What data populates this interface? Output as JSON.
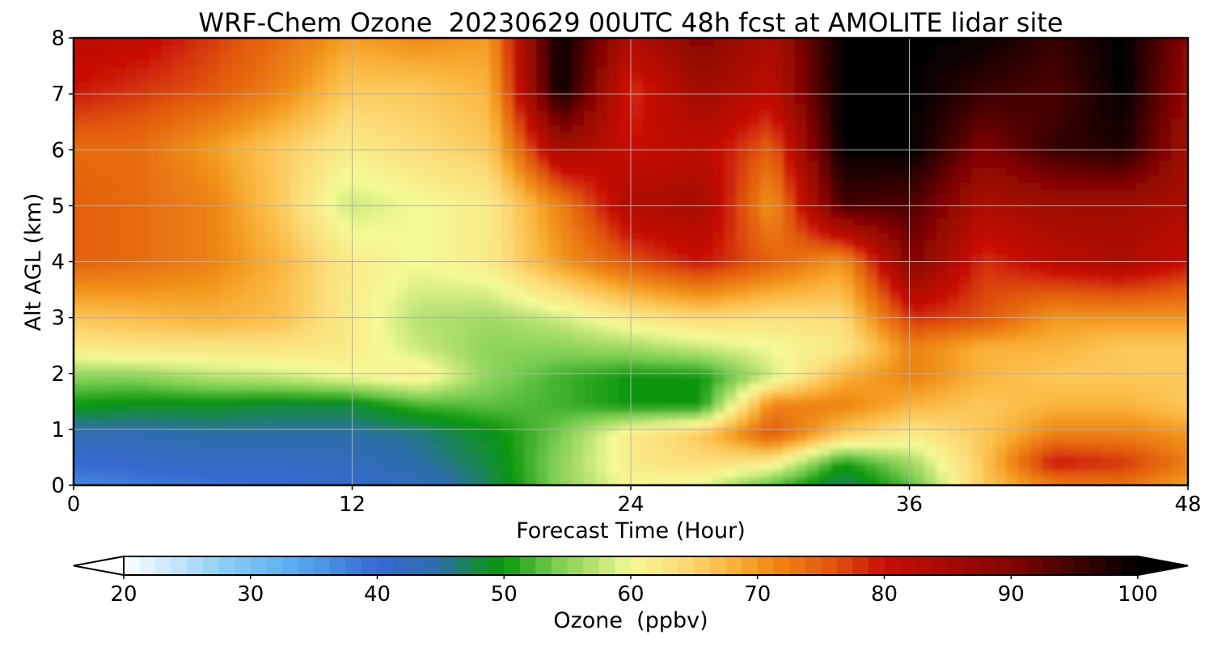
{
  "chart_data": {
    "type": "heatmap",
    "title": "WRF-Chem Ozone  20230629 00UTC 48h fcst at AMOLITE lidar site",
    "xlabel": "Forecast Time (Hour)",
    "ylabel": "Alt AGL (km)",
    "x_ticks": [
      "0",
      "12",
      "24",
      "36",
      "48"
    ],
    "y_ticks": [
      "0",
      "1",
      "2",
      "3",
      "4",
      "5",
      "6",
      "7",
      "8"
    ],
    "xlim": [
      0,
      48
    ],
    "ylim": [
      0,
      8
    ],
    "grid": true,
    "x": [
      0,
      3,
      6,
      9,
      12,
      15,
      18,
      21,
      24,
      27,
      30,
      33,
      36,
      39,
      42,
      45,
      48
    ],
    "y": [
      0,
      0.5,
      1,
      1.5,
      2,
      2.5,
      3,
      4,
      5,
      6,
      7,
      8
    ],
    "z": [
      [
        36,
        37,
        38,
        39,
        40,
        42,
        47,
        55,
        60,
        58,
        50,
        46,
        52,
        66,
        70,
        72,
        68
      ],
      [
        40,
        41,
        42,
        42,
        43,
        45,
        48,
        55,
        62,
        64,
        62,
        50,
        56,
        66,
        80,
        78,
        72
      ],
      [
        44,
        44,
        45,
        45,
        45,
        46,
        49,
        54,
        62,
        66,
        76,
        66,
        62,
        66,
        72,
        72,
        70
      ],
      [
        50,
        49,
        49,
        48,
        48,
        52,
        53,
        52,
        50,
        50,
        72,
        72,
        68,
        66,
        68,
        68,
        66
      ],
      [
        55,
        55,
        57,
        58,
        60,
        62,
        55,
        52,
        50,
        50,
        58,
        68,
        72,
        68,
        66,
        66,
        66
      ],
      [
        62,
        63,
        63,
        63,
        62,
        58,
        55,
        55,
        56,
        58,
        60,
        62,
        72,
        68,
        68,
        66,
        66
      ],
      [
        66,
        67,
        68,
        67,
        62,
        57,
        56,
        58,
        62,
        64,
        63,
        64,
        78,
        76,
        70,
        70,
        70
      ],
      [
        75,
        74,
        72,
        68,
        62,
        60,
        62,
        70,
        76,
        80,
        75,
        70,
        90,
        78,
        82,
        84,
        80
      ],
      [
        75,
        74,
        72,
        66,
        58,
        60,
        62,
        72,
        84,
        85,
        70,
        95,
        94,
        84,
        86,
        86,
        84
      ],
      [
        74,
        74,
        70,
        66,
        62,
        64,
        66,
        86,
        80,
        82,
        75,
        100,
        100,
        90,
        96,
        98,
        84
      ],
      [
        80,
        78,
        76,
        72,
        66,
        66,
        68,
        100,
        78,
        86,
        82,
        100,
        100,
        96,
        94,
        100,
        86
      ],
      [
        82,
        82,
        78,
        74,
        70,
        72,
        70,
        100,
        84,
        90,
        84,
        100,
        100,
        100,
        96,
        100,
        88
      ]
    ],
    "colorbar": {
      "label": "Ozone  (ppbv)",
      "min": 20,
      "max": 100,
      "ticks": [
        "20",
        "30",
        "40",
        "50",
        "60",
        "70",
        "80",
        "90",
        "100"
      ],
      "extend": "both"
    }
  }
}
